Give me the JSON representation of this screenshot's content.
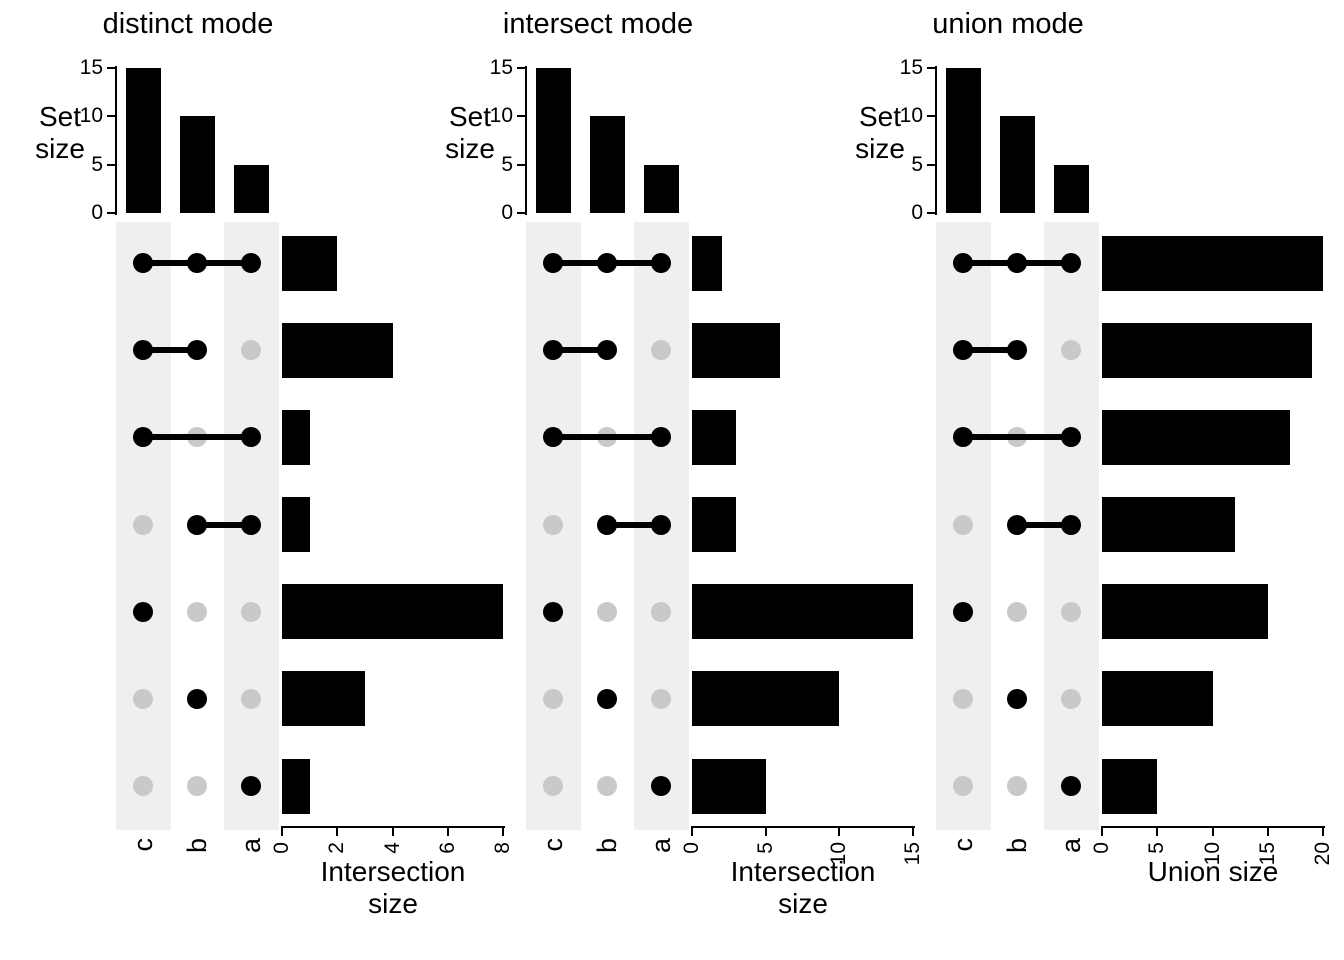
{
  "colors": {
    "bar": "#000000",
    "axis": "#000000",
    "dot_active": "#000000",
    "dot_inactive": "#c9c9c9",
    "stripe": "#efefef",
    "background": "#ffffff",
    "text": "#000000"
  },
  "chart_data": [
    {
      "type": "bar",
      "variant": "upset",
      "mode": "distinct",
      "title": "distinct mode",
      "set_axis": {
        "label": "Set size",
        "ticks": [
          0,
          5,
          10,
          15
        ],
        "max": 15
      },
      "sets": [
        {
          "name": "c",
          "size": 15
        },
        {
          "name": "b",
          "size": 10
        },
        {
          "name": "a",
          "size": 5
        }
      ],
      "combinations": [
        {
          "members": [
            "c",
            "b",
            "a"
          ],
          "size": 2
        },
        {
          "members": [
            "c",
            "b"
          ],
          "size": 4
        },
        {
          "members": [
            "c",
            "a"
          ],
          "size": 1
        },
        {
          "members": [
            "b",
            "a"
          ],
          "size": 1
        },
        {
          "members": [
            "c"
          ],
          "size": 8
        },
        {
          "members": [
            "b"
          ],
          "size": 3
        },
        {
          "members": [
            "a"
          ],
          "size": 1
        }
      ],
      "size_axis": {
        "label": "Intersection size",
        "ticks": [
          0,
          2,
          4,
          6,
          8
        ],
        "max": 8
      }
    },
    {
      "type": "bar",
      "variant": "upset",
      "mode": "intersect",
      "title": "intersect mode",
      "set_axis": {
        "label": "Set size",
        "ticks": [
          0,
          5,
          10,
          15
        ],
        "max": 15
      },
      "sets": [
        {
          "name": "c",
          "size": 15
        },
        {
          "name": "b",
          "size": 10
        },
        {
          "name": "a",
          "size": 5
        }
      ],
      "combinations": [
        {
          "members": [
            "c",
            "b",
            "a"
          ],
          "size": 2
        },
        {
          "members": [
            "c",
            "b"
          ],
          "size": 6
        },
        {
          "members": [
            "c",
            "a"
          ],
          "size": 3
        },
        {
          "members": [
            "b",
            "a"
          ],
          "size": 3
        },
        {
          "members": [
            "c"
          ],
          "size": 15
        },
        {
          "members": [
            "b"
          ],
          "size": 10
        },
        {
          "members": [
            "a"
          ],
          "size": 5
        }
      ],
      "size_axis": {
        "label": "Intersection size",
        "ticks": [
          0,
          5,
          10,
          15
        ],
        "max": 15
      }
    },
    {
      "type": "bar",
      "variant": "upset",
      "mode": "union",
      "title": "union mode",
      "set_axis": {
        "label": "Set size",
        "ticks": [
          0,
          5,
          10,
          15
        ],
        "max": 15
      },
      "sets": [
        {
          "name": "c",
          "size": 15
        },
        {
          "name": "b",
          "size": 10
        },
        {
          "name": "a",
          "size": 5
        }
      ],
      "combinations": [
        {
          "members": [
            "c",
            "b",
            "a"
          ],
          "size": 20
        },
        {
          "members": [
            "c",
            "b"
          ],
          "size": 19
        },
        {
          "members": [
            "c",
            "a"
          ],
          "size": 17
        },
        {
          "members": [
            "b",
            "a"
          ],
          "size": 12
        },
        {
          "members": [
            "c"
          ],
          "size": 15
        },
        {
          "members": [
            "b"
          ],
          "size": 10
        },
        {
          "members": [
            "a"
          ],
          "size": 5
        }
      ],
      "size_axis": {
        "label": "Union size",
        "ticks": [
          0,
          5,
          10,
          15,
          20
        ],
        "max": 20
      }
    }
  ]
}
